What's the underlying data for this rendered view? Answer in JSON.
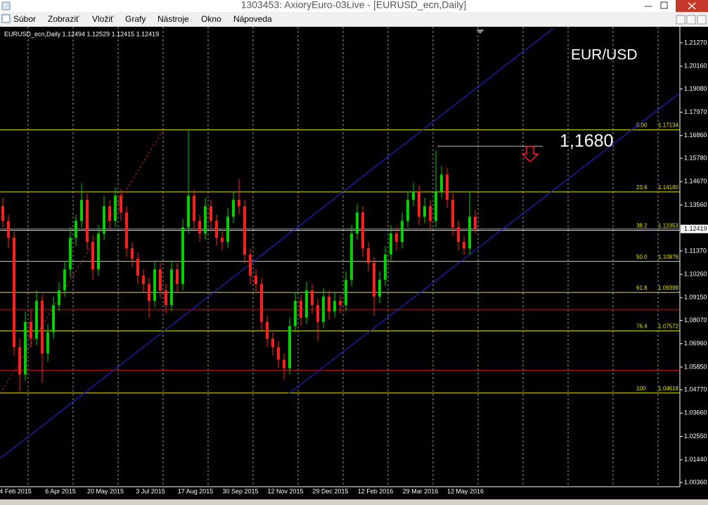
{
  "window": {
    "title": "1303453: AxioryEuro-03Live - [EURUSD_ecn,Daily]",
    "menu": [
      "Súbor",
      "Zobraziť",
      "Vložiť",
      "Grafy",
      "Nástroje",
      "Okno",
      "Nápoveda"
    ]
  },
  "chart_data": {
    "type": "candlestick",
    "header": "EURUSD_ecn,Daily  1.12494 1.12529 1.12415 1.12419",
    "annotations": [
      "EUR/USD",
      "1,1680"
    ],
    "ylim": [
      1.0016,
      1.2197
    ],
    "yticks": [
      {
        "value": 1.2127,
        "label": "1.21270"
      },
      {
        "value": 1.2016,
        "label": "1.20160"
      },
      {
        "value": 1.1908,
        "label": "1.19080"
      },
      {
        "value": 1.1797,
        "label": "1.17970"
      },
      {
        "value": 1.1686,
        "label": "1.16860"
      },
      {
        "value": 1.1578,
        "label": "1.15780"
      },
      {
        "value": 1.1467,
        "label": "1.14670"
      },
      {
        "value": 1.1356,
        "label": "1.13560"
      },
      {
        "value": 1.1137,
        "label": "1.11370"
      },
      {
        "value": 1.1026,
        "label": "1.10260"
      },
      {
        "value": 1.0915,
        "label": "1.09150"
      },
      {
        "value": 1.0807,
        "label": "1.08070"
      },
      {
        "value": 1.0696,
        "label": "1.06960"
      },
      {
        "value": 1.0585,
        "label": "1.05850"
      },
      {
        "value": 1.0477,
        "label": "1.04770"
      },
      {
        "value": 1.0366,
        "label": "1.03660"
      },
      {
        "value": 1.0255,
        "label": "1.02550"
      },
      {
        "value": 1.0144,
        "label": "1.01440"
      },
      {
        "value": 1.0036,
        "label": "1.00360"
      }
    ],
    "current_price": {
      "value": 1.12419,
      "label": "1.12419"
    },
    "x_labels": [
      "4 Feb 2015",
      "6 Apr 2015",
      "20 May 2015",
      "3 Jul 2015",
      "17 Aug 2015",
      "30 Sep 2015",
      "12 Nov 2015",
      "29 Dec 2015",
      "12 Feb 2016",
      "29 Mar 2016",
      "12 May 2016"
    ],
    "fibonacci": [
      {
        "ratio": "0.00",
        "value": 1.17134,
        "label": "1.17134"
      },
      {
        "ratio": "23.6",
        "value": 1.1418,
        "label": "1.14180"
      },
      {
        "ratio": "38.2",
        "value": 1.12353,
        "label": "1.12353"
      },
      {
        "ratio": "50.0",
        "value": 1.10876,
        "label": "1.10876"
      },
      {
        "ratio": "61.8",
        "value": 1.09399,
        "label": "1.09399"
      },
      {
        "ratio": "76.4",
        "value": 1.07572,
        "label": "1.07572"
      },
      {
        "ratio": "100",
        "value": 1.04618,
        "label": "1.04618"
      }
    ],
    "fib_color": "#e6e600",
    "red_levels": [
      1.0859,
      1.057
    ],
    "up_color": "#00d000",
    "down_color": "#ff2020",
    "candles": [
      [
        1.135,
        1.139,
        1.125,
        1.128
      ],
      [
        1.128,
        1.131,
        1.115,
        1.12
      ],
      [
        1.12,
        1.123,
        1.064,
        1.068
      ],
      [
        1.068,
        1.072,
        1.047,
        1.055
      ],
      [
        1.055,
        1.085,
        1.052,
        1.08
      ],
      [
        1.08,
        1.086,
        1.068,
        1.072
      ],
      [
        1.072,
        1.095,
        1.069,
        1.09
      ],
      [
        1.09,
        1.093,
        1.051,
        1.065
      ],
      [
        1.065,
        1.079,
        1.061,
        1.075
      ],
      [
        1.075,
        1.092,
        1.072,
        1.088
      ],
      [
        1.088,
        1.099,
        1.085,
        1.095
      ],
      [
        1.095,
        1.109,
        1.092,
        1.105
      ],
      [
        1.105,
        1.125,
        1.101,
        1.12
      ],
      [
        1.12,
        1.131,
        1.116,
        1.128
      ],
      [
        1.128,
        1.146,
        1.125,
        1.138
      ],
      [
        1.138,
        1.141,
        1.114,
        1.118
      ],
      [
        1.118,
        1.121,
        1.1,
        1.105
      ],
      [
        1.105,
        1.126,
        1.102,
        1.122
      ],
      [
        1.122,
        1.14,
        1.119,
        1.135
      ],
      [
        1.135,
        1.138,
        1.124,
        1.128
      ],
      [
        1.128,
        1.144,
        1.125,
        1.14
      ],
      [
        1.14,
        1.143,
        1.128,
        1.132
      ],
      [
        1.132,
        1.135,
        1.111,
        1.115
      ],
      [
        1.115,
        1.118,
        1.106,
        1.11
      ],
      [
        1.11,
        1.113,
        1.098,
        1.102
      ],
      [
        1.102,
        1.105,
        1.094,
        1.098
      ],
      [
        1.098,
        1.101,
        1.082,
        1.09
      ],
      [
        1.09,
        1.109,
        1.087,
        1.105
      ],
      [
        1.105,
        1.108,
        1.091,
        1.095
      ],
      [
        1.095,
        1.098,
        1.084,
        1.088
      ],
      [
        1.088,
        1.109,
        1.085,
        1.105
      ],
      [
        1.105,
        1.108,
        1.094,
        1.098
      ],
      [
        1.098,
        1.129,
        1.095,
        1.125
      ],
      [
        1.125,
        1.1713,
        1.122,
        1.14
      ],
      [
        1.14,
        1.143,
        1.124,
        1.128
      ],
      [
        1.128,
        1.131,
        1.118,
        1.122
      ],
      [
        1.122,
        1.139,
        1.119,
        1.135
      ],
      [
        1.135,
        1.138,
        1.124,
        1.128
      ],
      [
        1.128,
        1.131,
        1.116,
        1.12
      ],
      [
        1.12,
        1.123,
        1.114,
        1.118
      ],
      [
        1.118,
        1.134,
        1.115,
        1.13
      ],
      [
        1.13,
        1.142,
        1.127,
        1.138
      ],
      [
        1.138,
        1.148,
        1.131,
        1.135
      ],
      [
        1.135,
        1.138,
        1.108,
        1.112
      ],
      [
        1.112,
        1.115,
        1.098,
        1.102
      ],
      [
        1.102,
        1.105,
        1.094,
        1.098
      ],
      [
        1.098,
        1.101,
        1.076,
        1.08
      ],
      [
        1.08,
        1.083,
        1.068,
        1.072
      ],
      [
        1.072,
        1.075,
        1.064,
        1.068
      ],
      [
        1.068,
        1.071,
        1.058,
        1.062
      ],
      [
        1.062,
        1.065,
        1.0525,
        1.058
      ],
      [
        1.058,
        1.082,
        1.055,
        1.078
      ],
      [
        1.078,
        1.094,
        1.075,
        1.09
      ],
      [
        1.09,
        1.093,
        1.078,
        1.082
      ],
      [
        1.082,
        1.099,
        1.079,
        1.095
      ],
      [
        1.095,
        1.098,
        1.084,
        1.088
      ],
      [
        1.088,
        1.091,
        1.071,
        1.08
      ],
      [
        1.08,
        1.096,
        1.077,
        1.092
      ],
      [
        1.092,
        1.095,
        1.081,
        1.085
      ],
      [
        1.085,
        1.094,
        1.082,
        1.09
      ],
      [
        1.09,
        1.093,
        1.084,
        1.088
      ],
      [
        1.088,
        1.104,
        1.085,
        1.1
      ],
      [
        1.1,
        1.126,
        1.097,
        1.122
      ],
      [
        1.122,
        1.136,
        1.119,
        1.132
      ],
      [
        1.132,
        1.135,
        1.111,
        1.115
      ],
      [
        1.115,
        1.118,
        1.104,
        1.108
      ],
      [
        1.108,
        1.111,
        1.083,
        1.092
      ],
      [
        1.092,
        1.104,
        1.089,
        1.1
      ],
      [
        1.1,
        1.116,
        1.097,
        1.112
      ],
      [
        1.112,
        1.126,
        1.109,
        1.122
      ],
      [
        1.122,
        1.125,
        1.114,
        1.118
      ],
      [
        1.118,
        1.132,
        1.115,
        1.128
      ],
      [
        1.128,
        1.142,
        1.125,
        1.138
      ],
      [
        1.138,
        1.146,
        1.135,
        1.142
      ],
      [
        1.142,
        1.145,
        1.126,
        1.13
      ],
      [
        1.13,
        1.139,
        1.127,
        1.135
      ],
      [
        1.135,
        1.138,
        1.124,
        1.128
      ],
      [
        1.128,
        1.1615,
        1.125,
        1.142
      ],
      [
        1.142,
        1.154,
        1.139,
        1.15
      ],
      [
        1.15,
        1.153,
        1.134,
        1.138
      ],
      [
        1.138,
        1.141,
        1.121,
        1.125
      ],
      [
        1.125,
        1.128,
        1.114,
        1.118
      ],
      [
        1.118,
        1.121,
        1.112,
        1.115
      ],
      [
        1.115,
        1.142,
        1.112,
        1.13
      ],
      [
        1.13,
        1.133,
        1.122,
        1.1242
      ]
    ]
  }
}
